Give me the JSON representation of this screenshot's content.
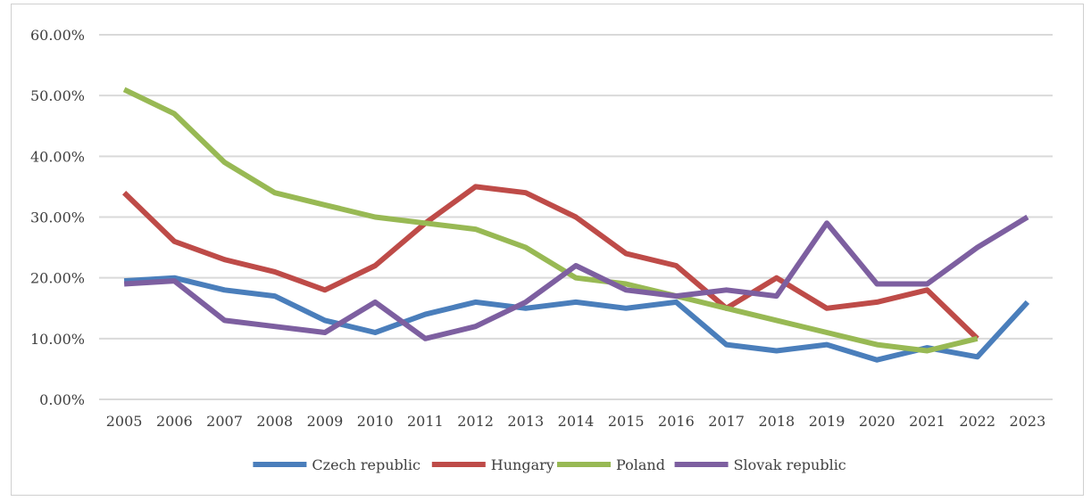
{
  "chart_data": {
    "type": "line",
    "title": "",
    "xlabel": "",
    "ylabel": "",
    "ylim": [
      0,
      60
    ],
    "y_tick_values": [
      0,
      10,
      20,
      30,
      40,
      50,
      60
    ],
    "y_tick_labels": [
      "0.00%",
      "10.00%",
      "20.00%",
      "30.00%",
      "40.00%",
      "50.00%",
      "60.00%"
    ],
    "grid": true,
    "legend_position": "bottom",
    "categories": [
      "2005",
      "2006",
      "2007",
      "2008",
      "2009",
      "2010",
      "2011",
      "2012",
      "2013",
      "2014",
      "2015",
      "2016",
      "2017",
      "2018",
      "2019",
      "2020",
      "2021",
      "2022",
      "2023"
    ],
    "series": [
      {
        "name": "Czech republic",
        "color": "#4a7ebb",
        "values": [
          19.5,
          20,
          18,
          17,
          13,
          11,
          14,
          16,
          15,
          16,
          15,
          16,
          9,
          8,
          9,
          6.5,
          8.5,
          7,
          16
        ]
      },
      {
        "name": "Hungary",
        "color": "#be4b48",
        "values": [
          34,
          26,
          23,
          21,
          18,
          22,
          29,
          35,
          34,
          30,
          24,
          22,
          15,
          20,
          15,
          16,
          18,
          10,
          null
        ]
      },
      {
        "name": "Poland",
        "color": "#98b954",
        "values": [
          51,
          47,
          39,
          34,
          32,
          30,
          29,
          28,
          25,
          20,
          19,
          17,
          15,
          13,
          11,
          9,
          8,
          10,
          null
        ]
      },
      {
        "name": "Slovak republic",
        "color": "#7d5fa0",
        "values": [
          19,
          19.5,
          13,
          12,
          11,
          16,
          10,
          12,
          16,
          22,
          18,
          17,
          18,
          17,
          29,
          19,
          19,
          25,
          30
        ]
      }
    ]
  }
}
